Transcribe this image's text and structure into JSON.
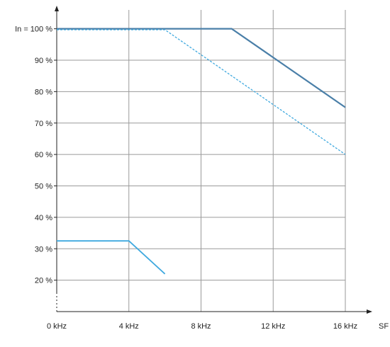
{
  "chart_data": {
    "type": "line",
    "xlabel": "SF",
    "ylabel": "",
    "xlim": [
      0,
      16
    ],
    "ylim": [
      10,
      106
    ],
    "grid": true,
    "x_ticks": [
      {
        "value": 0,
        "label": "0 kHz"
      },
      {
        "value": 4,
        "label": "4 kHz"
      },
      {
        "value": 8,
        "label": "8 kHz"
      },
      {
        "value": 12,
        "label": "12 kHz"
      },
      {
        "value": 16,
        "label": "16 kHz"
      }
    ],
    "y_ticks": [
      {
        "value": 20,
        "label": "20 %"
      },
      {
        "value": 30,
        "label": "30 %"
      },
      {
        "value": 40,
        "label": "40 %"
      },
      {
        "value": 50,
        "label": "50 %"
      },
      {
        "value": 60,
        "label": "60 %"
      },
      {
        "value": 70,
        "label": "70 %"
      },
      {
        "value": 80,
        "label": "80 %"
      },
      {
        "value": 90,
        "label": "90 %"
      },
      {
        "value": 100,
        "label": "In = 100 %"
      }
    ],
    "series": [
      {
        "color": "#4a7fa8",
        "style": "solid",
        "width": 2.2,
        "points": [
          [
            0,
            100
          ],
          [
            9.7,
            100
          ],
          [
            16,
            75
          ]
        ]
      },
      {
        "color": "#3fa9df",
        "style": "dashed",
        "width": 1.3,
        "points": [
          [
            0,
            99.7
          ],
          [
            6,
            99.7
          ],
          [
            16,
            60
          ]
        ]
      },
      {
        "color": "#3fa9df",
        "style": "solid",
        "width": 1.8,
        "points": [
          [
            0,
            32.5
          ],
          [
            4,
            32.5
          ],
          [
            6,
            22
          ]
        ]
      }
    ]
  }
}
